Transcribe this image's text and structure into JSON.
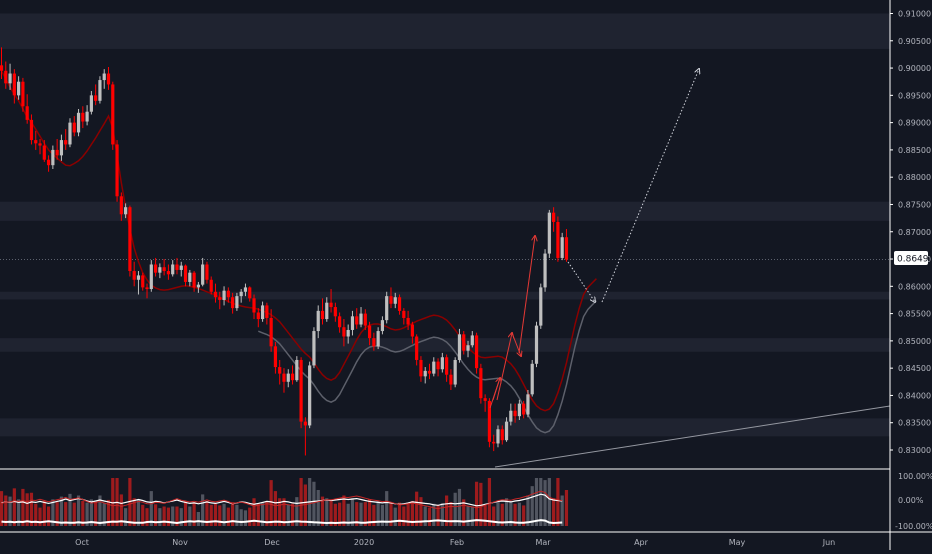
{
  "colors": {
    "background": "#131722",
    "zone": "#1f2330",
    "up": "#bfbfbf",
    "down": "#ff0000",
    "axis_text": "#b2b5be",
    "axis_line": "#ffffff",
    "pointer": "#d1d4dc",
    "price_label_bg": "#ffffff",
    "price_label_text": "#131722"
  },
  "chart_data": {
    "type": "candlestick",
    "title": "",
    "xlabel": "",
    "ylabel": "",
    "ylim": [
      0.8265,
      0.9125
    ],
    "y_ticks": [
      "0.91000",
      "0.90500",
      "0.90000",
      "0.89500",
      "0.89000",
      "0.88500",
      "0.88000",
      "0.87500",
      "0.87000",
      "0.86500",
      "0.86000",
      "0.85500",
      "0.85000",
      "0.84500",
      "0.84000",
      "0.83500",
      "0.83000"
    ],
    "x_ticks": [
      "Oct",
      "Nov",
      "Dec",
      "2020",
      "Feb",
      "Mar",
      "Apr",
      "May",
      "Jun"
    ],
    "last_price": "0.86493",
    "zones": [
      [
        0.9035,
        0.91
      ],
      [
        0.872,
        0.8755
      ],
      [
        0.8576,
        0.859
      ],
      [
        0.848,
        0.8505
      ],
      [
        0.8325,
        0.8358
      ]
    ],
    "moving_average": [
      0.8995,
      0.898,
      0.8965,
      0.8952,
      0.894,
      0.8925,
      0.891,
      0.89,
      0.8888,
      0.8875,
      0.8862,
      0.885,
      0.8842,
      0.8835,
      0.8828,
      0.8822,
      0.8821,
      0.8825,
      0.883,
      0.8838,
      0.8848,
      0.886,
      0.8872,
      0.8885,
      0.8898,
      0.8912,
      0.889,
      0.884,
      0.879,
      0.8745,
      0.8705,
      0.867,
      0.8645,
      0.8625,
      0.8612,
      0.8602,
      0.8597,
      0.8594,
      0.8593,
      0.8594,
      0.8596,
      0.8598,
      0.86,
      0.8601,
      0.86,
      0.8598,
      0.8596,
      0.8593,
      0.859,
      0.8587,
      0.8584,
      0.858,
      0.8576,
      0.8572,
      0.8569,
      0.8566,
      0.8564,
      0.8562,
      0.8561,
      0.856,
      0.8558,
      0.8555,
      0.8552,
      0.8548,
      0.8542,
      0.8535,
      0.8525,
      0.8515,
      0.8505,
      0.8495,
      0.8485,
      0.8477,
      0.847,
      0.846,
      0.8448,
      0.8438,
      0.8431,
      0.8428,
      0.8432,
      0.8442,
      0.8457,
      0.8472,
      0.8487,
      0.8502,
      0.8515,
      0.8524,
      0.8529,
      0.8531,
      0.8531,
      0.8529,
      0.8526,
      0.8522,
      0.852,
      0.8521,
      0.8524,
      0.8528,
      0.8532,
      0.8536,
      0.8539,
      0.8542,
      0.8545,
      0.8547,
      0.8546,
      0.8543,
      0.8538,
      0.853,
      0.852,
      0.8509,
      0.8498,
      0.8488,
      0.848,
      0.8474,
      0.847,
      0.8469,
      0.847,
      0.8471,
      0.8472,
      0.847,
      0.8465,
      0.8458,
      0.8448,
      0.8435,
      0.842,
      0.8405,
      0.8392,
      0.8381,
      0.8375,
      0.8372,
      0.8375,
      0.8385,
      0.8405,
      0.843,
      0.846,
      0.8495,
      0.853,
      0.856,
      0.8585,
      0.8598,
      0.8606,
      0.8614
    ],
    "candles": [
      {
        "o": 0.9005,
        "h": 0.9038,
        "l": 0.898,
        "c": 0.8995
      },
      {
        "o": 0.8995,
        "h": 0.9012,
        "l": 0.8962,
        "c": 0.8972
      },
      {
        "o": 0.8972,
        "h": 0.9008,
        "l": 0.896,
        "c": 0.899
      },
      {
        "o": 0.899,
        "h": 0.8998,
        "l": 0.8935,
        "c": 0.895
      },
      {
        "o": 0.895,
        "h": 0.8985,
        "l": 0.8942,
        "c": 0.8975
      },
      {
        "o": 0.8975,
        "h": 0.8982,
        "l": 0.892,
        "c": 0.893
      },
      {
        "o": 0.893,
        "h": 0.8952,
        "l": 0.8898,
        "c": 0.8905
      },
      {
        "o": 0.8905,
        "h": 0.8915,
        "l": 0.886,
        "c": 0.8868
      },
      {
        "o": 0.8868,
        "h": 0.8885,
        "l": 0.885,
        "c": 0.8862
      },
      {
        "o": 0.8862,
        "h": 0.887,
        "l": 0.8842,
        "c": 0.8858
      },
      {
        "o": 0.8858,
        "h": 0.8868,
        "l": 0.8828,
        "c": 0.8832
      },
      {
        "o": 0.8832,
        "h": 0.884,
        "l": 0.881,
        "c": 0.8822
      },
      {
        "o": 0.8822,
        "h": 0.8858,
        "l": 0.8815,
        "c": 0.885
      },
      {
        "o": 0.885,
        "h": 0.887,
        "l": 0.8832,
        "c": 0.884
      },
      {
        "o": 0.884,
        "h": 0.8878,
        "l": 0.883,
        "c": 0.8868
      },
      {
        "o": 0.8868,
        "h": 0.8888,
        "l": 0.885,
        "c": 0.886
      },
      {
        "o": 0.886,
        "h": 0.8908,
        "l": 0.8855,
        "c": 0.89
      },
      {
        "o": 0.89,
        "h": 0.8912,
        "l": 0.8875,
        "c": 0.8882
      },
      {
        "o": 0.8882,
        "h": 0.8925,
        "l": 0.8875,
        "c": 0.8918
      },
      {
        "o": 0.8918,
        "h": 0.893,
        "l": 0.889,
        "c": 0.8902
      },
      {
        "o": 0.8902,
        "h": 0.8932,
        "l": 0.8895,
        "c": 0.892
      },
      {
        "o": 0.892,
        "h": 0.8958,
        "l": 0.8915,
        "c": 0.895
      },
      {
        "o": 0.895,
        "h": 0.897,
        "l": 0.8932,
        "c": 0.894
      },
      {
        "o": 0.894,
        "h": 0.8985,
        "l": 0.8935,
        "c": 0.8978
      },
      {
        "o": 0.8978,
        "h": 0.8998,
        "l": 0.8962,
        "c": 0.899
      },
      {
        "o": 0.899,
        "h": 0.9002,
        "l": 0.896,
        "c": 0.897
      },
      {
        "o": 0.897,
        "h": 0.8975,
        "l": 0.885,
        "c": 0.886
      },
      {
        "o": 0.886,
        "h": 0.8868,
        "l": 0.8755,
        "c": 0.8765
      },
      {
        "o": 0.8765,
        "h": 0.8772,
        "l": 0.872,
        "c": 0.8732
      },
      {
        "o": 0.8732,
        "h": 0.8752,
        "l": 0.8725,
        "c": 0.8745
      },
      {
        "o": 0.8745,
        "h": 0.8748,
        "l": 0.8618,
        "c": 0.8628
      },
      {
        "o": 0.8628,
        "h": 0.8645,
        "l": 0.86,
        "c": 0.8612
      },
      {
        "o": 0.8612,
        "h": 0.8628,
        "l": 0.8585,
        "c": 0.862
      },
      {
        "o": 0.862,
        "h": 0.8625,
        "l": 0.8592,
        "c": 0.8598
      },
      {
        "o": 0.8598,
        "h": 0.8605,
        "l": 0.8578,
        "c": 0.8595
      },
      {
        "o": 0.8595,
        "h": 0.8648,
        "l": 0.859,
        "c": 0.864
      },
      {
        "o": 0.864,
        "h": 0.8652,
        "l": 0.8618,
        "c": 0.8625
      },
      {
        "o": 0.8625,
        "h": 0.8642,
        "l": 0.8615,
        "c": 0.8635
      },
      {
        "o": 0.8635,
        "h": 0.865,
        "l": 0.862,
        "c": 0.8628
      },
      {
        "o": 0.8628,
        "h": 0.864,
        "l": 0.8612,
        "c": 0.8622
      },
      {
        "o": 0.8622,
        "h": 0.8648,
        "l": 0.8618,
        "c": 0.864
      },
      {
        "o": 0.864,
        "h": 0.8652,
        "l": 0.8622,
        "c": 0.863
      },
      {
        "o": 0.863,
        "h": 0.8645,
        "l": 0.8618,
        "c": 0.8638
      },
      {
        "o": 0.8638,
        "h": 0.864,
        "l": 0.86,
        "c": 0.8608
      },
      {
        "o": 0.8608,
        "h": 0.863,
        "l": 0.86,
        "c": 0.8625
      },
      {
        "o": 0.8625,
        "h": 0.8628,
        "l": 0.859,
        "c": 0.8598
      },
      {
        "o": 0.8598,
        "h": 0.8608,
        "l": 0.8588,
        "c": 0.8603
      },
      {
        "o": 0.8603,
        "h": 0.8652,
        "l": 0.86,
        "c": 0.864
      },
      {
        "o": 0.864,
        "h": 0.8645,
        "l": 0.8605,
        "c": 0.8612
      },
      {
        "o": 0.8612,
        "h": 0.8618,
        "l": 0.8585,
        "c": 0.859
      },
      {
        "o": 0.859,
        "h": 0.8605,
        "l": 0.857,
        "c": 0.858
      },
      {
        "o": 0.858,
        "h": 0.859,
        "l": 0.8558,
        "c": 0.8575
      },
      {
        "o": 0.8575,
        "h": 0.86,
        "l": 0.8565,
        "c": 0.8592
      },
      {
        "o": 0.8592,
        "h": 0.8598,
        "l": 0.857,
        "c": 0.858
      },
      {
        "o": 0.858,
        "h": 0.8588,
        "l": 0.855,
        "c": 0.856
      },
      {
        "o": 0.856,
        "h": 0.8588,
        "l": 0.8555,
        "c": 0.8582
      },
      {
        "o": 0.8582,
        "h": 0.8595,
        "l": 0.857,
        "c": 0.859
      },
      {
        "o": 0.859,
        "h": 0.8605,
        "l": 0.8582,
        "c": 0.8598
      },
      {
        "o": 0.8598,
        "h": 0.86,
        "l": 0.8572,
        "c": 0.8578
      },
      {
        "o": 0.8578,
        "h": 0.8585,
        "l": 0.854,
        "c": 0.8552
      },
      {
        "o": 0.8552,
        "h": 0.856,
        "l": 0.8525,
        "c": 0.854
      },
      {
        "o": 0.854,
        "h": 0.8572,
        "l": 0.8535,
        "c": 0.8565
      },
      {
        "o": 0.8565,
        "h": 0.857,
        "l": 0.853,
        "c": 0.8542
      },
      {
        "o": 0.8542,
        "h": 0.8558,
        "l": 0.848,
        "c": 0.849
      },
      {
        "o": 0.849,
        "h": 0.8498,
        "l": 0.844,
        "c": 0.8452
      },
      {
        "o": 0.8452,
        "h": 0.8465,
        "l": 0.842,
        "c": 0.844
      },
      {
        "o": 0.844,
        "h": 0.845,
        "l": 0.8405,
        "c": 0.8425
      },
      {
        "o": 0.8425,
        "h": 0.8448,
        "l": 0.8415,
        "c": 0.844
      },
      {
        "o": 0.844,
        "h": 0.8455,
        "l": 0.842,
        "c": 0.8428
      },
      {
        "o": 0.8428,
        "h": 0.8472,
        "l": 0.8425,
        "c": 0.8465
      },
      {
        "o": 0.8465,
        "h": 0.847,
        "l": 0.834,
        "c": 0.8352
      },
      {
        "o": 0.8352,
        "h": 0.836,
        "l": 0.829,
        "c": 0.8345
      },
      {
        "o": 0.8345,
        "h": 0.8462,
        "l": 0.834,
        "c": 0.8455
      },
      {
        "o": 0.8455,
        "h": 0.8525,
        "l": 0.845,
        "c": 0.8518
      },
      {
        "o": 0.8518,
        "h": 0.8565,
        "l": 0.8505,
        "c": 0.8555
      },
      {
        "o": 0.8555,
        "h": 0.8578,
        "l": 0.853,
        "c": 0.854
      },
      {
        "o": 0.854,
        "h": 0.858,
        "l": 0.8535,
        "c": 0.857
      },
      {
        "o": 0.857,
        "h": 0.8595,
        "l": 0.8552,
        "c": 0.8562
      },
      {
        "o": 0.8562,
        "h": 0.857,
        "l": 0.8535,
        "c": 0.8545
      },
      {
        "o": 0.8545,
        "h": 0.8552,
        "l": 0.8515,
        "c": 0.8525
      },
      {
        "o": 0.8525,
        "h": 0.854,
        "l": 0.849,
        "c": 0.8508
      },
      {
        "o": 0.8508,
        "h": 0.853,
        "l": 0.8495,
        "c": 0.852
      },
      {
        "o": 0.852,
        "h": 0.8555,
        "l": 0.851,
        "c": 0.8545
      },
      {
        "o": 0.8545,
        "h": 0.856,
        "l": 0.8522,
        "c": 0.853
      },
      {
        "o": 0.853,
        "h": 0.8562,
        "l": 0.8525,
        "c": 0.855
      },
      {
        "o": 0.855,
        "h": 0.8558,
        "l": 0.852,
        "c": 0.8528
      },
      {
        "o": 0.8528,
        "h": 0.8535,
        "l": 0.8492,
        "c": 0.8505
      },
      {
        "o": 0.8505,
        "h": 0.8515,
        "l": 0.8482,
        "c": 0.849
      },
      {
        "o": 0.849,
        "h": 0.8525,
        "l": 0.8485,
        "c": 0.8518
      },
      {
        "o": 0.8518,
        "h": 0.8545,
        "l": 0.8512,
        "c": 0.8538
      },
      {
        "o": 0.8538,
        "h": 0.859,
        "l": 0.8532,
        "c": 0.8582
      },
      {
        "o": 0.8582,
        "h": 0.8598,
        "l": 0.856,
        "c": 0.8568
      },
      {
        "o": 0.8568,
        "h": 0.8588,
        "l": 0.856,
        "c": 0.858
      },
      {
        "o": 0.858,
        "h": 0.8585,
        "l": 0.8548,
        "c": 0.8555
      },
      {
        "o": 0.8555,
        "h": 0.856,
        "l": 0.853,
        "c": 0.8542
      },
      {
        "o": 0.8542,
        "h": 0.8555,
        "l": 0.852,
        "c": 0.853
      },
      {
        "o": 0.853,
        "h": 0.8535,
        "l": 0.8495,
        "c": 0.8508
      },
      {
        "o": 0.8508,
        "h": 0.8512,
        "l": 0.8455,
        "c": 0.8465
      },
      {
        "o": 0.8465,
        "h": 0.8472,
        "l": 0.8425,
        "c": 0.8435
      },
      {
        "o": 0.8435,
        "h": 0.8452,
        "l": 0.8422,
        "c": 0.8445
      },
      {
        "o": 0.8445,
        "h": 0.8458,
        "l": 0.843,
        "c": 0.844
      },
      {
        "o": 0.844,
        "h": 0.847,
        "l": 0.8435,
        "c": 0.8462
      },
      {
        "o": 0.8462,
        "h": 0.8468,
        "l": 0.8435,
        "c": 0.8448
      },
      {
        "o": 0.8448,
        "h": 0.8478,
        "l": 0.8442,
        "c": 0.847
      },
      {
        "o": 0.847,
        "h": 0.8475,
        "l": 0.8425,
        "c": 0.8438
      },
      {
        "o": 0.8438,
        "h": 0.8448,
        "l": 0.841,
        "c": 0.842
      },
      {
        "o": 0.842,
        "h": 0.847,
        "l": 0.8415,
        "c": 0.8465
      },
      {
        "o": 0.8465,
        "h": 0.8522,
        "l": 0.846,
        "c": 0.8512
      },
      {
        "o": 0.8512,
        "h": 0.8518,
        "l": 0.8475,
        "c": 0.8482
      },
      {
        "o": 0.8482,
        "h": 0.85,
        "l": 0.847,
        "c": 0.8492
      },
      {
        "o": 0.8492,
        "h": 0.8518,
        "l": 0.8488,
        "c": 0.851
      },
      {
        "o": 0.851,
        "h": 0.8515,
        "l": 0.844,
        "c": 0.845
      },
      {
        "o": 0.845,
        "h": 0.8458,
        "l": 0.8385,
        "c": 0.8395
      },
      {
        "o": 0.8395,
        "h": 0.8402,
        "l": 0.837,
        "c": 0.839
      },
      {
        "o": 0.839,
        "h": 0.8395,
        "l": 0.8305,
        "c": 0.8315
      },
      {
        "o": 0.8315,
        "h": 0.8328,
        "l": 0.8298,
        "c": 0.8312
      },
      {
        "o": 0.8312,
        "h": 0.8345,
        "l": 0.8305,
        "c": 0.8338
      },
      {
        "o": 0.8338,
        "h": 0.8345,
        "l": 0.831,
        "c": 0.8318
      },
      {
        "o": 0.8318,
        "h": 0.836,
        "l": 0.8315,
        "c": 0.8352
      },
      {
        "o": 0.8352,
        "h": 0.8385,
        "l": 0.8345,
        "c": 0.8372
      },
      {
        "o": 0.8372,
        "h": 0.8385,
        "l": 0.835,
        "c": 0.8362
      },
      {
        "o": 0.8362,
        "h": 0.8392,
        "l": 0.8355,
        "c": 0.8385
      },
      {
        "o": 0.8385,
        "h": 0.839,
        "l": 0.8358,
        "c": 0.8365
      },
      {
        "o": 0.8365,
        "h": 0.841,
        "l": 0.836,
        "c": 0.8402
      },
      {
        "o": 0.8402,
        "h": 0.8465,
        "l": 0.8398,
        "c": 0.8458
      },
      {
        "o": 0.8458,
        "h": 0.8535,
        "l": 0.8452,
        "c": 0.8528
      },
      {
        "o": 0.8528,
        "h": 0.8605,
        "l": 0.8522,
        "c": 0.8598
      },
      {
        "o": 0.8598,
        "h": 0.8668,
        "l": 0.859,
        "c": 0.866
      },
      {
        "o": 0.866,
        "h": 0.874,
        "l": 0.8652,
        "c": 0.8735
      },
      {
        "o": 0.8735,
        "h": 0.8745,
        "l": 0.87,
        "c": 0.8718
      },
      {
        "o": 0.8718,
        "h": 0.8728,
        "l": 0.8645,
        "c": 0.8652
      },
      {
        "o": 0.8652,
        "h": 0.8698,
        "l": 0.8648,
        "c": 0.869
      },
      {
        "o": 0.869,
        "h": 0.8705,
        "l": 0.8645,
        "c": 0.8649
      }
    ],
    "oscillator": {
      "y_ticks": [
        "100.00%",
        "0.00%",
        "-100.00%"
      ],
      "white_line": [
        -12,
        -8,
        -10,
        -6,
        -10,
        -8,
        -14,
        -8,
        -10,
        -6,
        -10,
        -14,
        -10,
        -6,
        -2,
        4,
        -2,
        2,
        6,
        2,
        -4,
        -8,
        -4,
        0,
        -4,
        -8,
        -12,
        -10,
        -14,
        -10,
        -6,
        -2,
        2,
        -2,
        -8,
        -10,
        -6,
        -8,
        -12,
        -8,
        -4,
        0,
        -6,
        -10,
        -14,
        -12,
        -16,
        -12,
        -8,
        -12,
        -14,
        -10,
        -6,
        -10,
        -16,
        -12,
        -8,
        -10,
        -14,
        -18,
        -14,
        -10,
        -6,
        -8,
        -12,
        -10,
        -6,
        -8,
        -12,
        -14,
        -12,
        -10,
        -8,
        -6,
        -4,
        -2,
        0,
        -2,
        0,
        2,
        4,
        2,
        4,
        6,
        2,
        -2,
        -6,
        -8,
        -10,
        -12,
        -10,
        -12,
        -16,
        -18,
        -16,
        -12,
        -8,
        -10,
        -12,
        -14,
        -16,
        -20,
        -22,
        -18,
        -16,
        -14,
        -16,
        -14,
        -12,
        -16,
        -20,
        -24,
        -22,
        -18,
        -14,
        -10,
        -6,
        -4,
        -6,
        -8,
        -4,
        -2,
        2,
        6,
        12,
        18,
        24,
        20,
        4,
        0,
        -2,
        -4
      ]
    }
  }
}
